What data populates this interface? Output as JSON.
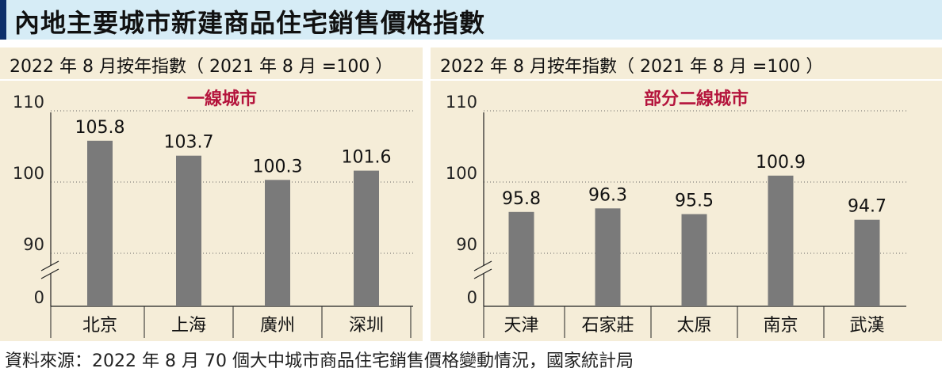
{
  "title": "內地主要城市新建商品住宅銷售價格指數",
  "source": "資料來源：2022 年 8 月 70 個大中城市商品住宅銷售價格變動情況，國家統計局",
  "colors": {
    "bar": "#7a7a7a",
    "panel_bg": "#f5edd8",
    "title_bg": "#d6ecf6",
    "title_accent": "#0d2f6b",
    "chart_title": "#b4143c"
  },
  "chart_data": [
    {
      "type": "bar",
      "subtitle": "2022 年 8 月按年指數（ 2021 年 8 月 =100 ）",
      "title": "一線城市",
      "categories": [
        "北京",
        "上海",
        "廣州",
        "深圳"
      ],
      "values": [
        105.8,
        103.7,
        100.3,
        101.6
      ],
      "data_labels": [
        "105.8",
        "103.7",
        "100.3",
        "101.6"
      ],
      "y_ticks": [
        "110",
        "100",
        "90",
        "0"
      ],
      "y_tick_values": [
        110,
        100,
        90,
        85
      ],
      "ylim": [
        85,
        110
      ],
      "axis_break": true,
      "grid": "dotted horizontal"
    },
    {
      "type": "bar",
      "subtitle": "2022 年 8 月按年指數（ 2021 年 8 月 =100 ）",
      "title": "部分二線城市",
      "categories": [
        "天津",
        "石家莊",
        "太原",
        "南京",
        "武漢"
      ],
      "values": [
        95.8,
        96.3,
        95.5,
        100.9,
        94.7
      ],
      "data_labels": [
        "95.8",
        "96.3",
        "95.5",
        "100.9",
        "94.7"
      ],
      "y_ticks": [
        "110",
        "100",
        "90",
        "0"
      ],
      "y_tick_values": [
        110,
        100,
        90,
        85
      ],
      "ylim": [
        85,
        110
      ],
      "axis_break": true,
      "grid": "dotted horizontal"
    }
  ]
}
